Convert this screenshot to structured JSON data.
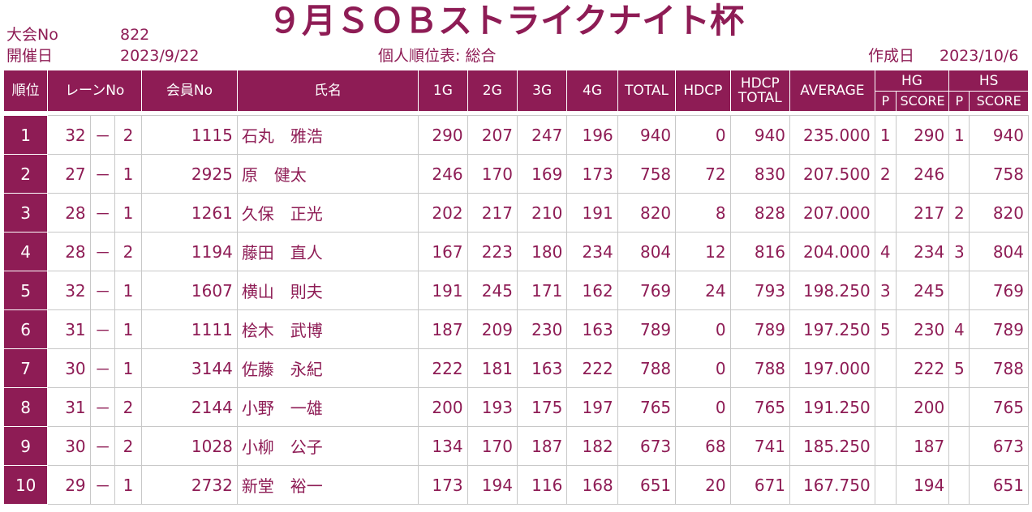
{
  "header": {
    "tournament_no_label": "大会No",
    "tournament_no": "822",
    "date_label": "開催日",
    "date": "2023/9/22",
    "title": "９月ＳＯＢストライクナイト杯",
    "subtitle": "個人順位表: 総合",
    "created_label": "作成日",
    "created_date": "2023/10/6"
  },
  "columns": {
    "rank": "順位",
    "lane": "レーンNo",
    "member_no": "会員No",
    "name": "氏名",
    "g1": "1G",
    "g2": "2G",
    "g3": "3G",
    "g4": "4G",
    "total": "TOTAL",
    "hdcp": "HDCP",
    "hdcp_total_1": "HDCP",
    "hdcp_total_2": "TOTAL",
    "average": "AVERAGE",
    "hg": "HG",
    "hs": "HS",
    "p": "P",
    "score": "SCORE"
  },
  "rows": [
    {
      "rank": "1",
      "lane": "32",
      "dash": "－",
      "sub": "2",
      "member": "1115",
      "name": "石丸　雅浩",
      "g1": "290",
      "g2": "207",
      "g3": "247",
      "g4": "196",
      "total": "940",
      "hdcp": "0",
      "hdcp_total": "940",
      "avg": "235.000",
      "hg_p": "1",
      "hg_score": "290",
      "hs_p": "1",
      "hs_score": "940"
    },
    {
      "rank": "2",
      "lane": "27",
      "dash": "－",
      "sub": "1",
      "member": "2925",
      "name": "原　健太",
      "g1": "246",
      "g2": "170",
      "g3": "169",
      "g4": "173",
      "total": "758",
      "hdcp": "72",
      "hdcp_total": "830",
      "avg": "207.500",
      "hg_p": "2",
      "hg_score": "246",
      "hs_p": "",
      "hs_score": "758"
    },
    {
      "rank": "3",
      "lane": "28",
      "dash": "－",
      "sub": "1",
      "member": "1261",
      "name": "久保　正光",
      "g1": "202",
      "g2": "217",
      "g3": "210",
      "g4": "191",
      "total": "820",
      "hdcp": "8",
      "hdcp_total": "828",
      "avg": "207.000",
      "hg_p": "",
      "hg_score": "217",
      "hs_p": "2",
      "hs_score": "820"
    },
    {
      "rank": "4",
      "lane": "28",
      "dash": "－",
      "sub": "2",
      "member": "1194",
      "name": "藤田　直人",
      "g1": "167",
      "g2": "223",
      "g3": "180",
      "g4": "234",
      "total": "804",
      "hdcp": "12",
      "hdcp_total": "816",
      "avg": "204.000",
      "hg_p": "4",
      "hg_score": "234",
      "hs_p": "3",
      "hs_score": "804"
    },
    {
      "rank": "5",
      "lane": "32",
      "dash": "－",
      "sub": "1",
      "member": "1607",
      "name": "横山　則夫",
      "g1": "191",
      "g2": "245",
      "g3": "171",
      "g4": "162",
      "total": "769",
      "hdcp": "24",
      "hdcp_total": "793",
      "avg": "198.250",
      "hg_p": "3",
      "hg_score": "245",
      "hs_p": "",
      "hs_score": "769"
    },
    {
      "rank": "6",
      "lane": "31",
      "dash": "－",
      "sub": "1",
      "member": "1111",
      "name": "桧木　武博",
      "g1": "187",
      "g2": "209",
      "g3": "230",
      "g4": "163",
      "total": "789",
      "hdcp": "0",
      "hdcp_total": "789",
      "avg": "197.250",
      "hg_p": "5",
      "hg_score": "230",
      "hs_p": "4",
      "hs_score": "789"
    },
    {
      "rank": "7",
      "lane": "30",
      "dash": "－",
      "sub": "1",
      "member": "3144",
      "name": "佐藤　永紀",
      "g1": "222",
      "g2": "181",
      "g3": "163",
      "g4": "222",
      "total": "788",
      "hdcp": "0",
      "hdcp_total": "788",
      "avg": "197.000",
      "hg_p": "",
      "hg_score": "222",
      "hs_p": "5",
      "hs_score": "788"
    },
    {
      "rank": "8",
      "lane": "31",
      "dash": "－",
      "sub": "2",
      "member": "2144",
      "name": "小野　一雄",
      "g1": "200",
      "g2": "193",
      "g3": "175",
      "g4": "197",
      "total": "765",
      "hdcp": "0",
      "hdcp_total": "765",
      "avg": "191.250",
      "hg_p": "",
      "hg_score": "200",
      "hs_p": "",
      "hs_score": "765"
    },
    {
      "rank": "9",
      "lane": "30",
      "dash": "－",
      "sub": "2",
      "member": "1028",
      "name": "小柳　公子",
      "g1": "134",
      "g2": "170",
      "g3": "187",
      "g4": "182",
      "total": "673",
      "hdcp": "68",
      "hdcp_total": "741",
      "avg": "185.250",
      "hg_p": "",
      "hg_score": "187",
      "hs_p": "",
      "hs_score": "673"
    },
    {
      "rank": "10",
      "lane": "29",
      "dash": "－",
      "sub": "1",
      "member": "2732",
      "name": "新堂　裕一",
      "g1": "173",
      "g2": "194",
      "g3": "116",
      "g4": "168",
      "total": "651",
      "hdcp": "20",
      "hdcp_total": "671",
      "avg": "167.750",
      "hg_p": "",
      "hg_score": "194",
      "hs_p": "",
      "hs_score": "651"
    }
  ]
}
